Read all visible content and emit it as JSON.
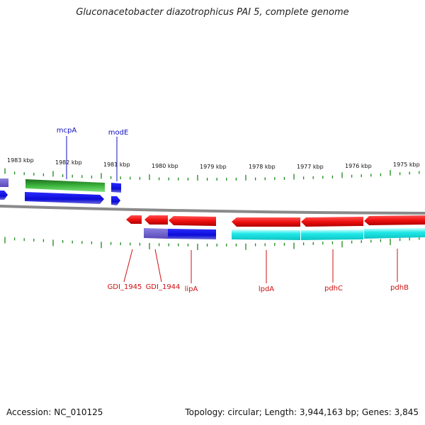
{
  "title": "Gluconacetobacter diazotrophicus PAI 5, complete genome",
  "footer": {
    "accession": "Accession: NC_010125",
    "topology": "Topology: circular; Length: 3,944,163 bp; Genes: 3,845"
  },
  "colors": {
    "backbone": "#8a8a8a",
    "tick": "#1a8a1a",
    "top_label": "#1010c0",
    "bottom_label": "#cc1010",
    "forward_green": "#2fa02f",
    "forward_blue": "#1010e0",
    "reverse_red": "#ee1010",
    "reverse_cyan": "#10e0e0",
    "shaded_purple": "#6a5acd"
  },
  "kbp_labels": [
    "1983 kbp",
    "1982 kbp",
    "1981 kbp",
    "1980 kbp",
    "1979 kbp",
    "1978 kbp",
    "1977 kbp",
    "1976 kbp",
    "1975 kbp"
  ],
  "forward_genes": [
    "mcpA",
    "modE"
  ],
  "reverse_genes": [
    "GDI_1945",
    "GDI_1944",
    "lipA",
    "lpdA",
    "pdhC",
    "pdhB"
  ]
}
